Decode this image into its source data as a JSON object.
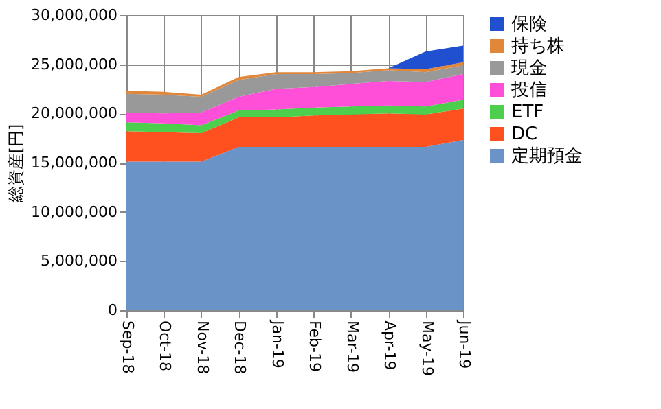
{
  "chart_data": {
    "type": "area",
    "stacked": true,
    "ylabel": "総資産[円]",
    "categories": [
      "Sep-18",
      "Oct-18",
      "Nov-18",
      "Dec-18",
      "Jan-19",
      "Feb-19",
      "Mar-19",
      "Apr-19",
      "May-19",
      "Jun-19"
    ],
    "series": [
      {
        "name": "定期預金",
        "color": "#6a93c8",
        "values": [
          15100000,
          15100000,
          15100000,
          16600000,
          16600000,
          16600000,
          16600000,
          16600000,
          16600000,
          17300000
        ]
      },
      {
        "name": "DC",
        "color": "#ff5020",
        "values": [
          3100000,
          3000000,
          2900000,
          3000000,
          3000000,
          3200000,
          3300000,
          3400000,
          3300000,
          3200000
        ]
      },
      {
        "name": "ETF",
        "color": "#4ccf4c",
        "values": [
          900000,
          900000,
          800000,
          700000,
          800000,
          800000,
          800000,
          800000,
          800000,
          900000
        ]
      },
      {
        "name": "投信",
        "color": "#ff4fd8",
        "values": [
          1000000,
          1000000,
          1300000,
          1400000,
          2100000,
          2100000,
          2300000,
          2500000,
          2500000,
          2600000
        ]
      },
      {
        "name": "現金",
        "color": "#999999",
        "values": [
          1900000,
          1900000,
          1600000,
          1700000,
          1500000,
          1300000,
          1100000,
          1100000,
          1000000,
          900000
        ]
      },
      {
        "name": "持ち株",
        "color": "#e0873a",
        "values": [
          300000,
          300000,
          200000,
          300000,
          200000,
          200000,
          200000,
          200000,
          300000,
          300000
        ]
      },
      {
        "name": "保険",
        "color": "#2050d0",
        "values": [
          0,
          0,
          0,
          0,
          0,
          0,
          0,
          0,
          1800000,
          1700000
        ]
      }
    ],
    "ylim": [
      0,
      30000000
    ],
    "yticks": [
      0,
      {
        "value": 5000000,
        "label": "5,000,000"
      },
      {
        "value": 10000000,
        "label": "10,000,000"
      },
      {
        "value": 15000000,
        "label": "15,000,000"
      },
      {
        "value": 20000000,
        "label": "20,000,000"
      },
      {
        "value": 25000000,
        "label": "25,000,000"
      },
      {
        "value": 30000000,
        "label": "30,000,000"
      }
    ],
    "grid": true,
    "legend": "right"
  }
}
